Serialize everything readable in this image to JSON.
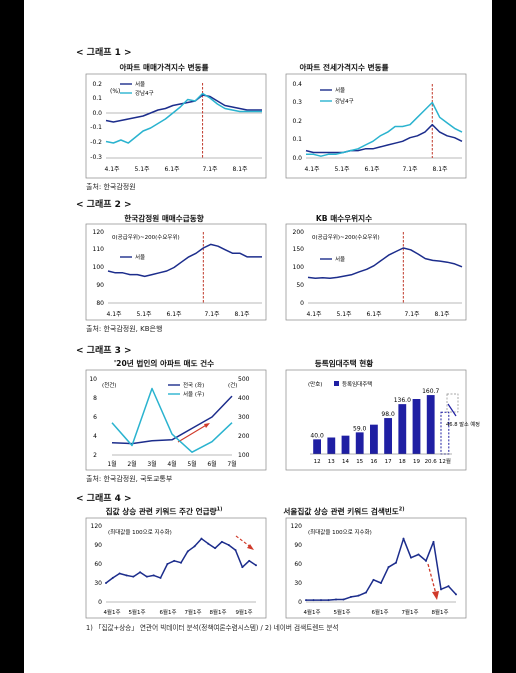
{
  "graph1": {
    "heading": "< 그래프 1 >",
    "source": "출처: 한국감정원",
    "charts": [
      {
        "title": "아파트 매매가격지수 변동률",
        "unit": "(%)",
        "yticks": [
          "0.2",
          "0.1",
          "0.0",
          "-0.1",
          "-0.2",
          "-0.3"
        ],
        "xticks": [
          "4.1주",
          "5.1주",
          "6.1주",
          "7.1주",
          "8.1주"
        ],
        "legend": [
          "서울",
          "강남4구"
        ]
      },
      {
        "title": "아파트 전세가격지수 변동률",
        "yticks": [
          "0.4",
          "0.3",
          "0.2",
          "0.1",
          "0.0"
        ],
        "xticks": [
          "4.1주",
          "5.1주",
          "6.1주",
          "7.1주",
          "8.1주"
        ],
        "legend": [
          "서울",
          "강남4구"
        ]
      }
    ]
  },
  "graph2": {
    "heading": "< 그래프 2 >",
    "source": "출처: 한국감정원, KB은행",
    "charts": [
      {
        "title": "한국감정원 매매수급동향",
        "note": "0(공급우위)~200(수요우위)",
        "yticks": [
          "120",
          "110",
          "100",
          "90",
          "80"
        ],
        "xticks": [
          "4.1주",
          "5.1주",
          "6.1주",
          "7.1주",
          "8.1주"
        ],
        "legend": [
          "서울"
        ]
      },
      {
        "title": "KB 매수우위지수",
        "note": "0(공급우위)~200(수요우위)",
        "yticks": [
          "200",
          "150",
          "100",
          "50",
          "0"
        ],
        "xticks": [
          "4.1주",
          "5.1주",
          "6.1주",
          "7.1주",
          "8.1주"
        ],
        "legend": [
          "서울"
        ]
      }
    ]
  },
  "graph3": {
    "heading": "< 그래프 3 >",
    "source": "출처: 한국감정원, 국토교통부",
    "charts": [
      {
        "title": "'20년 법인의 아파트 매도 건수",
        "unit_left": "(천건)",
        "unit_right": "(건)",
        "yticks_left": [
          "10",
          "8",
          "6",
          "4",
          "2"
        ],
        "yticks_right": [
          "500",
          "400",
          "300",
          "200",
          "100"
        ],
        "xticks": [
          "1월",
          "2월",
          "3월",
          "4월",
          "5월",
          "6월",
          "7월"
        ],
        "legend": [
          "전국 (좌)",
          "서울 (우)"
        ]
      },
      {
        "title": "등록임대주택 현황",
        "unit": "(만호)",
        "legend": [
          "등록임대주택"
        ],
        "note": "46.8 말소 예정"
      }
    ]
  },
  "graph4": {
    "heading": "< 그래프 4 >",
    "footnote": "1) 「집값+상승」 연관어 빅데이터 분석(정책여론수렴시스템) / 2) 네이버 검색트렌드 분석",
    "charts": [
      {
        "title": "집값 상승 관련 키워드 주간 언급량",
        "title_sup": "1)",
        "note": "(최대값을 100으로 지수화)",
        "yticks": [
          "120",
          "90",
          "60",
          "30",
          "0"
        ],
        "xticks": [
          "4월1주",
          "5월1주",
          "6월1주",
          "7월1주",
          "8월1주",
          "9월1주"
        ]
      },
      {
        "title": "서울집값 상승 관련 키워드 검색빈도",
        "title_sup": "2)",
        "note": "(최대값을 100으로 지수화)",
        "yticks": [
          "120",
          "90",
          "60",
          "30",
          "0"
        ],
        "xticks": [
          "4월1주",
          "5월1주",
          "6월1주",
          "7월1주",
          "8월1주"
        ]
      }
    ]
  },
  "chart_data": [
    {
      "type": "line",
      "title": "아파트 매매가격지수 변동률",
      "ylabel": "(%)",
      "ylim": [
        -0.3,
        0.2
      ],
      "x": [
        1,
        2,
        3,
        4,
        5,
        6,
        7,
        8,
        9,
        10,
        11,
        12,
        13,
        14,
        15,
        16,
        17,
        18,
        19,
        20,
        21,
        22
      ],
      "xtick_positions": [
        1,
        5,
        9,
        14,
        18
      ],
      "xtick_labels": [
        "4.1주",
        "5.1주",
        "6.1주",
        "7.1주",
        "8.1주"
      ],
      "marker_x": 14,
      "series": [
        {
          "name": "서울",
          "color": "#1c2d8c",
          "values": [
            -0.05,
            -0.06,
            -0.05,
            -0.04,
            -0.03,
            -0.02,
            0.0,
            0.02,
            0.03,
            0.05,
            0.06,
            0.07,
            0.08,
            0.12,
            0.11,
            0.08,
            0.05,
            0.04,
            0.03,
            0.02,
            0.02,
            0.02
          ]
        },
        {
          "name": "강남4구",
          "color": "#2ab3cf",
          "values": [
            -0.19,
            -0.2,
            -0.18,
            -0.2,
            -0.16,
            -0.12,
            -0.1,
            -0.07,
            -0.04,
            0.0,
            0.04,
            0.09,
            0.08,
            0.13,
            0.1,
            0.06,
            0.03,
            0.02,
            0.01,
            0.01,
            0.01,
            0.01
          ]
        }
      ]
    },
    {
      "type": "line",
      "title": "아파트 전세가격지수 변동률",
      "ylim": [
        0.0,
        0.4
      ],
      "x": [
        1,
        2,
        3,
        4,
        5,
        6,
        7,
        8,
        9,
        10,
        11,
        12,
        13,
        14,
        15,
        16,
        17,
        18,
        19,
        20,
        21,
        22
      ],
      "xtick_positions": [
        1,
        5,
        9,
        14,
        18
      ],
      "xtick_labels": [
        "4.1주",
        "5.1주",
        "6.1주",
        "7.1주",
        "8.1주"
      ],
      "marker_x": 18,
      "series": [
        {
          "name": "서울",
          "color": "#1c2d8c",
          "values": [
            0.04,
            0.03,
            0.03,
            0.03,
            0.03,
            0.03,
            0.04,
            0.04,
            0.05,
            0.05,
            0.06,
            0.07,
            0.08,
            0.09,
            0.11,
            0.12,
            0.14,
            0.18,
            0.14,
            0.12,
            0.11,
            0.09
          ]
        },
        {
          "name": "강남4구",
          "color": "#2ab3cf",
          "values": [
            0.02,
            0.02,
            0.01,
            0.02,
            0.02,
            0.03,
            0.04,
            0.05,
            0.07,
            0.09,
            0.12,
            0.14,
            0.17,
            0.17,
            0.18,
            0.22,
            0.26,
            0.3,
            0.22,
            0.19,
            0.16,
            0.14
          ]
        }
      ]
    },
    {
      "type": "line",
      "title": "한국감정원 매매수급동향",
      "ylim": [
        80,
        120
      ],
      "x": [
        1,
        2,
        3,
        4,
        5,
        6,
        7,
        8,
        9,
        10,
        11,
        12,
        13,
        14,
        15,
        16,
        17,
        18,
        19,
        20,
        21,
        22
      ],
      "xtick_positions": [
        1,
        5,
        9,
        14,
        18
      ],
      "xtick_labels": [
        "4.1주",
        "5.1주",
        "6.1주",
        "7.1주",
        "8.1주"
      ],
      "marker_x": 14,
      "series": [
        {
          "name": "서울",
          "color": "#1c2d8c",
          "values": [
            98,
            97,
            97,
            96,
            96,
            95,
            96,
            97,
            98,
            100,
            103,
            106,
            108,
            111,
            113,
            112,
            110,
            108,
            108,
            106,
            106,
            106
          ]
        }
      ]
    },
    {
      "type": "line",
      "title": "KB 매수우위지수",
      "ylim": [
        0,
        200
      ],
      "x": [
        1,
        2,
        3,
        4,
        5,
        6,
        7,
        8,
        9,
        10,
        11,
        12,
        13,
        14,
        15,
        16,
        17,
        18,
        19,
        20,
        21,
        22
      ],
      "xtick_positions": [
        1,
        5,
        9,
        14,
        18
      ],
      "xtick_labels": [
        "4.1주",
        "5.1주",
        "6.1주",
        "7.1주",
        "8.1주"
      ],
      "marker_x": 14,
      "series": [
        {
          "name": "서울",
          "color": "#1c2d8c",
          "values": [
            72,
            70,
            71,
            70,
            72,
            76,
            80,
            88,
            95,
            105,
            120,
            135,
            145,
            155,
            150,
            138,
            125,
            120,
            118,
            115,
            110,
            102
          ]
        }
      ]
    },
    {
      "type": "line",
      "title": "'20년 법인의 아파트 매도 건수",
      "ylim": [
        2,
        10
      ],
      "ylim_right": [
        100,
        500
      ],
      "categories": [
        "1월",
        "2월",
        "3월",
        "4월",
        "5월",
        "6월",
        "7월"
      ],
      "series": [
        {
          "name": "전국 (좌)",
          "color": "#1c2d8c",
          "axis": "left",
          "values": [
            3.3,
            3.2,
            3.5,
            3.6,
            4.8,
            6.0,
            8.2
          ]
        },
        {
          "name": "서울 (우)",
          "color": "#2ab3cf",
          "axis": "right",
          "values": [
            270,
            150,
            450,
            210,
            115,
            170,
            270
          ]
        }
      ]
    },
    {
      "type": "bar",
      "title": "등록임대주택 현황",
      "ylabel": "(만호)",
      "ylim": [
        0,
        180
      ],
      "categories": [
        "12",
        "13",
        "14",
        "15",
        "16",
        "17",
        "18",
        "19",
        "20.6",
        "12월"
      ],
      "series": [
        {
          "name": "등록임대주택",
          "color": "#1f1fa3",
          "values": [
            40.0,
            45.0,
            50.0,
            59.0,
            80.0,
            98.0,
            136.0,
            150.0,
            160.7,
            113.9
          ]
        }
      ],
      "labels": {
        "0": "40.0",
        "3": "59.0",
        "5": "98.0",
        "6": "136.0",
        "8": "160.7"
      }
    },
    {
      "type": "line",
      "title": "집값 상승 관련 키워드 주간 언급량",
      "ylabel": "(최대값을 100으로 지수화)",
      "ylim": [
        0,
        120
      ],
      "x": [
        1,
        2,
        3,
        4,
        5,
        6,
        7,
        8,
        9,
        10,
        11,
        12,
        13,
        14,
        15,
        16,
        17,
        18,
        19,
        20,
        21,
        22,
        23
      ],
      "xtick_positions": [
        1,
        5,
        10,
        14,
        18,
        22
      ],
      "xtick_labels": [
        "4월1주",
        "5월1주",
        "6월1주",
        "7월1주",
        "8월1주",
        "9월1주"
      ],
      "series": [
        {
          "name": "",
          "color": "#1c2d8c",
          "values": [
            30,
            38,
            45,
            42,
            40,
            47,
            40,
            42,
            38,
            60,
            65,
            62,
            80,
            88,
            100,
            92,
            85,
            95,
            90,
            82,
            55,
            65,
            58
          ]
        }
      ]
    },
    {
      "type": "line",
      "title": "서울집값 상승 관련 키워드 검색빈도",
      "ylabel": "(최대값을 100으로 지수화)",
      "ylim": [
        0,
        120
      ],
      "x": [
        1,
        2,
        3,
        4,
        5,
        6,
        7,
        8,
        9,
        10,
        11,
        12,
        13,
        14,
        15,
        16,
        17,
        18,
        19,
        20,
        21
      ],
      "xtick_positions": [
        1,
        5,
        10,
        14,
        18
      ],
      "xtick_labels": [
        "4월1주",
        "5월1주",
        "6월1주",
        "7월1주",
        "8월1주"
      ],
      "series": [
        {
          "name": "",
          "color": "#1c2d8c",
          "values": [
            3,
            3,
            3,
            3,
            4,
            4,
            8,
            10,
            15,
            35,
            30,
            55,
            62,
            100,
            70,
            75,
            65,
            95,
            20,
            25,
            12
          ]
        }
      ]
    }
  ]
}
